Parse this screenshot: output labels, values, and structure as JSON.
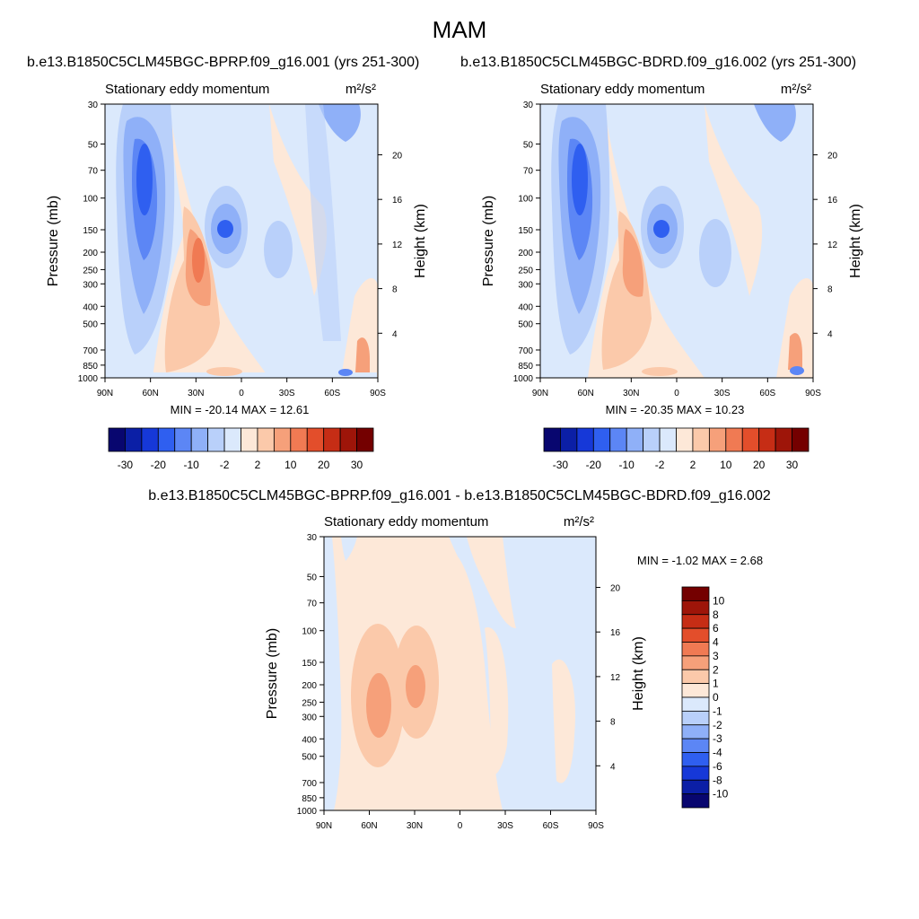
{
  "title": "MAM",
  "field_name": "Stationary eddy momentum",
  "units": "m²/s²",
  "y_left_label": "Pressure (mb)",
  "y_right_label": "Height (km)",
  "pressure_ticks": [
    "30",
    "50",
    "70",
    "100",
    "150",
    "200",
    "250",
    "300",
    "400",
    "500",
    "700",
    "850",
    "1000"
  ],
  "height_ticks": [
    "20",
    "16",
    "12",
    "8",
    "4"
  ],
  "lat_ticks": [
    "90N",
    "60N",
    "30N",
    "0",
    "30S",
    "60S",
    "90S"
  ],
  "colors": {
    "levels_main": [
      "-30",
      "-20",
      "-10",
      "-2",
      "2",
      "10",
      "20",
      "30"
    ],
    "palette": [
      "#08066f",
      "#0b1fa6",
      "#1638d8",
      "#2f5ff0",
      "#5c86f5",
      "#8fb0f8",
      "#b9d0fa",
      "#dbe9fc",
      "#fde8d8",
      "#fbc9aa",
      "#f6a07a",
      "#f07a53",
      "#e34e2b",
      "#c62d15",
      "#9e1509",
      "#740000"
    ]
  },
  "chart_data": [
    {
      "type": "contour",
      "panel": "top-left",
      "case": "b.e13.B1850C5CLM45BGC-BPRP.f09_g16.001 (yrs 251-300)",
      "title": "Stationary eddy momentum",
      "units": "m²/s²",
      "xlabel": "",
      "ylabel": "Pressure (mb)",
      "y2label": "Height (km)",
      "x_ticks": [
        "90N",
        "60N",
        "30N",
        "0",
        "30S",
        "60S",
        "90S"
      ],
      "y_ticks": [
        30,
        50,
        70,
        100,
        150,
        200,
        250,
        300,
        400,
        500,
        700,
        850,
        1000
      ],
      "y2_ticks": [
        20,
        16,
        12,
        8,
        4
      ],
      "min": -20.14,
      "max": 12.61,
      "min_max_text": "MIN = -20.14  MAX =  12.61",
      "colorbar_labels": [
        "-30",
        "-20",
        "-10",
        "-2",
        "2",
        "10",
        "20",
        "30"
      ]
    },
    {
      "type": "contour",
      "panel": "top-right",
      "case": "b.e13.B1850C5CLM45BGC-BDRD.f09_g16.002 (yrs 251-300)",
      "title": "Stationary eddy momentum",
      "units": "m²/s²",
      "xlabel": "",
      "ylabel": "Pressure (mb)",
      "y2label": "Height (km)",
      "x_ticks": [
        "90N",
        "60N",
        "30N",
        "0",
        "30S",
        "60S",
        "90S"
      ],
      "y_ticks": [
        30,
        50,
        70,
        100,
        150,
        200,
        250,
        300,
        400,
        500,
        700,
        850,
        1000
      ],
      "y2_ticks": [
        20,
        16,
        12,
        8,
        4
      ],
      "min": -20.35,
      "max": 10.23,
      "min_max_text": "MIN = -20.35  MAX =  10.23",
      "colorbar_labels": [
        "-30",
        "-20",
        "-10",
        "-2",
        "2",
        "10",
        "20",
        "30"
      ]
    },
    {
      "type": "contour",
      "panel": "bottom-difference",
      "case": "b.e13.B1850C5CLM45BGC-BPRP.f09_g16.001 - b.e13.B1850C5CLM45BGC-BDRD.f09_g16.002",
      "title": "Stationary eddy momentum",
      "units": "m²/s²",
      "xlabel": "",
      "ylabel": "Pressure (mb)",
      "y2label": "Height (km)",
      "x_ticks": [
        "90N",
        "60N",
        "30N",
        "0",
        "30S",
        "60S",
        "90S"
      ],
      "y_ticks": [
        30,
        50,
        70,
        100,
        150,
        200,
        250,
        300,
        400,
        500,
        700,
        850,
        1000
      ],
      "y2_ticks": [
        20,
        16,
        12,
        8,
        4
      ],
      "min": -1.02,
      "max": 2.68,
      "min_max_text": "MIN =  -1.02  MAX =   2.68",
      "colorbar_labels": [
        "10",
        "8",
        "6",
        "4",
        "3",
        "2",
        "1",
        "0",
        "-1",
        "-2",
        "-3",
        "-4",
        "-6",
        "-8",
        "-10"
      ]
    }
  ]
}
